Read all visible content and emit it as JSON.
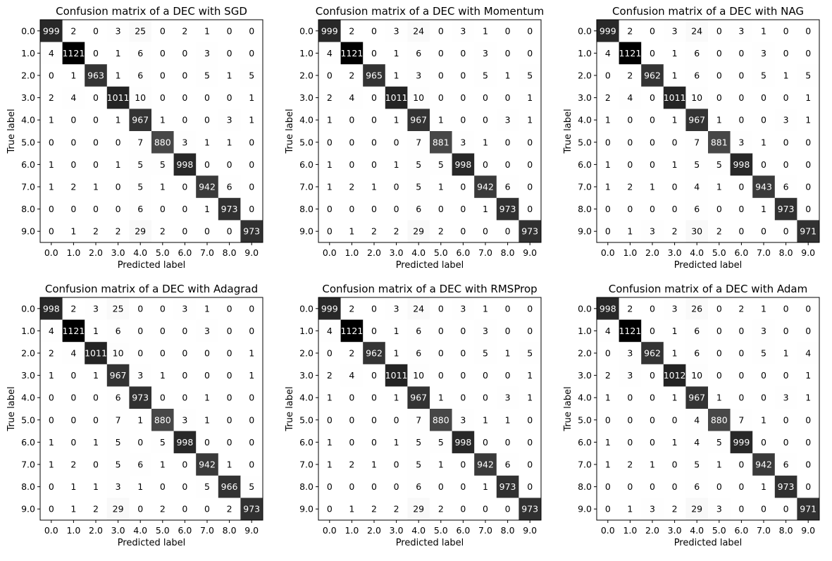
{
  "colors": {
    "low": "#ffffff",
    "high": "#000000",
    "text_dark": "#000000",
    "text_light": "#ffffff",
    "frame": "#000000"
  },
  "chart_data": [
    {
      "type": "heatmap",
      "title": "Confusion matrix of a DEC with SGD",
      "xlabel": "Predicted label",
      "ylabel": "True label",
      "x_categories": [
        "0.0",
        "1.0",
        "2.0",
        "3.0",
        "4.0",
        "5.0",
        "6.0",
        "7.0",
        "8.0",
        "9.0"
      ],
      "y_categories": [
        "0.0",
        "1.0",
        "2.0",
        "3.0",
        "4.0",
        "5.0",
        "6.0",
        "7.0",
        "8.0",
        "9.0"
      ],
      "colormap": "Greys",
      "values": [
        [
          999,
          2,
          0,
          3,
          25,
          0,
          2,
          1,
          0,
          0
        ],
        [
          4,
          1121,
          0,
          1,
          6,
          0,
          0,
          3,
          0,
          0
        ],
        [
          0,
          1,
          963,
          1,
          6,
          0,
          0,
          5,
          1,
          5
        ],
        [
          2,
          4,
          0,
          1011,
          10,
          0,
          0,
          0,
          0,
          1
        ],
        [
          1,
          0,
          0,
          1,
          967,
          1,
          0,
          0,
          3,
          1
        ],
        [
          0,
          0,
          0,
          0,
          7,
          880,
          3,
          1,
          1,
          0
        ],
        [
          1,
          0,
          0,
          1,
          5,
          5,
          998,
          0,
          0,
          0
        ],
        [
          1,
          2,
          1,
          0,
          5,
          1,
          0,
          942,
          6,
          0
        ],
        [
          0,
          0,
          0,
          0,
          6,
          0,
          0,
          1,
          973,
          0
        ],
        [
          0,
          1,
          2,
          2,
          29,
          2,
          0,
          0,
          0,
          973
        ]
      ]
    },
    {
      "type": "heatmap",
      "title": "Confusion matrix of a DEC with Momentum",
      "xlabel": "Predicted label",
      "ylabel": "True label",
      "x_categories": [
        "0.0",
        "1.0",
        "2.0",
        "3.0",
        "4.0",
        "5.0",
        "6.0",
        "7.0",
        "8.0",
        "9.0"
      ],
      "y_categories": [
        "0.0",
        "1.0",
        "2.0",
        "3.0",
        "4.0",
        "5.0",
        "6.0",
        "7.0",
        "8.0",
        "9.0"
      ],
      "colormap": "Greys",
      "values": [
        [
          999,
          2,
          0,
          3,
          24,
          0,
          3,
          1,
          0,
          0
        ],
        [
          4,
          1121,
          0,
          1,
          6,
          0,
          0,
          3,
          0,
          0
        ],
        [
          0,
          2,
          965,
          1,
          3,
          0,
          0,
          5,
          1,
          5
        ],
        [
          2,
          4,
          0,
          1011,
          10,
          0,
          0,
          0,
          0,
          1
        ],
        [
          1,
          0,
          0,
          1,
          967,
          1,
          0,
          0,
          3,
          1
        ],
        [
          0,
          0,
          0,
          0,
          7,
          881,
          3,
          1,
          0,
          0
        ],
        [
          1,
          0,
          0,
          1,
          5,
          5,
          998,
          0,
          0,
          0
        ],
        [
          1,
          2,
          1,
          0,
          5,
          1,
          0,
          942,
          6,
          0
        ],
        [
          0,
          0,
          0,
          0,
          6,
          0,
          0,
          1,
          973,
          0
        ],
        [
          0,
          1,
          2,
          2,
          29,
          2,
          0,
          0,
          0,
          973
        ]
      ]
    },
    {
      "type": "heatmap",
      "title": "Confusion matrix of a DEC with NAG",
      "xlabel": "Predicted label",
      "ylabel": "True label",
      "x_categories": [
        "0.0",
        "1.0",
        "2.0",
        "3.0",
        "4.0",
        "5.0",
        "6.0",
        "7.0",
        "8.0",
        "9.0"
      ],
      "y_categories": [
        "0.0",
        "1.0",
        "2.0",
        "3.0",
        "4.0",
        "5.0",
        "6.0",
        "7.0",
        "8.0",
        "9.0"
      ],
      "colormap": "Greys",
      "values": [
        [
          999,
          2,
          0,
          3,
          24,
          0,
          3,
          1,
          0,
          0
        ],
        [
          4,
          1121,
          0,
          1,
          6,
          0,
          0,
          3,
          0,
          0
        ],
        [
          0,
          2,
          962,
          1,
          6,
          0,
          0,
          5,
          1,
          5
        ],
        [
          2,
          4,
          0,
          1011,
          10,
          0,
          0,
          0,
          0,
          1
        ],
        [
          1,
          0,
          0,
          1,
          967,
          1,
          0,
          0,
          3,
          1
        ],
        [
          0,
          0,
          0,
          0,
          7,
          881,
          3,
          1,
          0,
          0
        ],
        [
          1,
          0,
          0,
          1,
          5,
          5,
          998,
          0,
          0,
          0
        ],
        [
          1,
          2,
          1,
          0,
          4,
          1,
          0,
          943,
          6,
          0
        ],
        [
          0,
          0,
          0,
          0,
          6,
          0,
          0,
          1,
          973,
          0
        ],
        [
          0,
          1,
          3,
          2,
          30,
          2,
          0,
          0,
          0,
          971
        ]
      ]
    },
    {
      "type": "heatmap",
      "title": "Confusion matrix of a DEC with Adagrad",
      "xlabel": "Predicted label",
      "ylabel": "True label",
      "x_categories": [
        "0.0",
        "1.0",
        "2.0",
        "3.0",
        "4.0",
        "5.0",
        "6.0",
        "7.0",
        "8.0",
        "9.0"
      ],
      "y_categories": [
        "0.0",
        "1.0",
        "2.0",
        "3.0",
        "4.0",
        "5.0",
        "6.0",
        "7.0",
        "8.0",
        "9.0"
      ],
      "colormap": "Greys",
      "values": [
        [
          998,
          2,
          3,
          25,
          0,
          0,
          3,
          1,
          0,
          0
        ],
        [
          4,
          1121,
          1,
          6,
          0,
          0,
          0,
          3,
          0,
          0
        ],
        [
          2,
          4,
          1011,
          10,
          0,
          0,
          0,
          0,
          0,
          1
        ],
        [
          1,
          0,
          1,
          967,
          3,
          1,
          0,
          0,
          0,
          1
        ],
        [
          0,
          0,
          0,
          6,
          973,
          0,
          0,
          1,
          0,
          0
        ],
        [
          0,
          0,
          0,
          7,
          1,
          880,
          3,
          1,
          0,
          0
        ],
        [
          1,
          0,
          1,
          5,
          0,
          5,
          998,
          0,
          0,
          0
        ],
        [
          1,
          2,
          0,
          5,
          6,
          1,
          0,
          942,
          1,
          0
        ],
        [
          0,
          1,
          1,
          3,
          1,
          0,
          0,
          5,
          966,
          5
        ],
        [
          0,
          1,
          2,
          29,
          0,
          2,
          0,
          0,
          2,
          973
        ]
      ]
    },
    {
      "type": "heatmap",
      "title": "Confusion matrix of a DEC with RMSProp",
      "xlabel": "Predicted label",
      "ylabel": "True label",
      "x_categories": [
        "0.0",
        "1.0",
        "2.0",
        "3.0",
        "4.0",
        "5.0",
        "6.0",
        "7.0",
        "8.0",
        "9.0"
      ],
      "y_categories": [
        "0.0",
        "1.0",
        "2.0",
        "3.0",
        "4.0",
        "5.0",
        "6.0",
        "7.0",
        "8.0",
        "9.0"
      ],
      "colormap": "Greys",
      "values": [
        [
          999,
          2,
          0,
          3,
          24,
          0,
          3,
          1,
          0,
          0
        ],
        [
          4,
          1121,
          0,
          1,
          6,
          0,
          0,
          3,
          0,
          0
        ],
        [
          0,
          2,
          962,
          1,
          6,
          0,
          0,
          5,
          1,
          5
        ],
        [
          2,
          4,
          0,
          1011,
          10,
          0,
          0,
          0,
          0,
          1
        ],
        [
          1,
          0,
          0,
          1,
          967,
          1,
          0,
          0,
          3,
          1
        ],
        [
          0,
          0,
          0,
          0,
          7,
          880,
          3,
          1,
          1,
          0
        ],
        [
          1,
          0,
          0,
          1,
          5,
          5,
          998,
          0,
          0,
          0
        ],
        [
          1,
          2,
          1,
          0,
          5,
          1,
          0,
          942,
          6,
          0
        ],
        [
          0,
          0,
          0,
          0,
          6,
          0,
          0,
          1,
          973,
          0
        ],
        [
          0,
          1,
          2,
          2,
          29,
          2,
          0,
          0,
          0,
          973
        ]
      ]
    },
    {
      "type": "heatmap",
      "title": "Confusion matrix of a DEC with Adam",
      "xlabel": "Predicted label",
      "ylabel": "True label",
      "x_categories": [
        "0.0",
        "1.0",
        "2.0",
        "3.0",
        "4.0",
        "5.0",
        "6.0",
        "7.0",
        "8.0",
        "9.0"
      ],
      "y_categories": [
        "0.0",
        "1.0",
        "2.0",
        "3.0",
        "4.0",
        "5.0",
        "6.0",
        "7.0",
        "8.0",
        "9.0"
      ],
      "colormap": "Greys",
      "values": [
        [
          998,
          2,
          0,
          3,
          26,
          0,
          2,
          1,
          0,
          0
        ],
        [
          4,
          1121,
          0,
          1,
          6,
          0,
          0,
          3,
          0,
          0
        ],
        [
          0,
          3,
          962,
          1,
          6,
          0,
          0,
          5,
          1,
          4
        ],
        [
          2,
          3,
          0,
          1012,
          10,
          0,
          0,
          0,
          0,
          1
        ],
        [
          1,
          0,
          0,
          1,
          967,
          1,
          0,
          0,
          3,
          1
        ],
        [
          0,
          0,
          0,
          0,
          4,
          880,
          7,
          1,
          0,
          0
        ],
        [
          1,
          0,
          0,
          1,
          4,
          5,
          999,
          0,
          0,
          0
        ],
        [
          1,
          2,
          1,
          0,
          5,
          1,
          0,
          942,
          6,
          0
        ],
        [
          0,
          0,
          0,
          0,
          6,
          0,
          0,
          1,
          973,
          0
        ],
        [
          0,
          1,
          3,
          2,
          29,
          3,
          0,
          0,
          0,
          971
        ]
      ]
    }
  ]
}
